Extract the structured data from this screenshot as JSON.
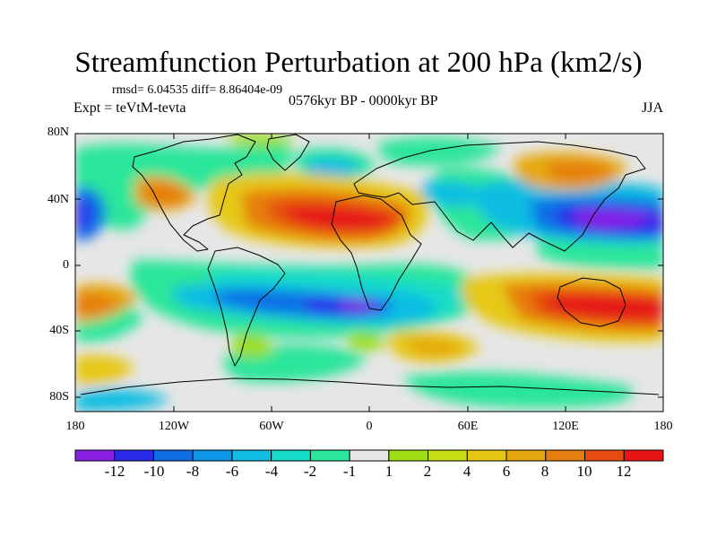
{
  "title": "Streamfunction Perturbation at 200 hPa (km2/s)",
  "stats": "rmsd= 6.04535  diff= 8.86404e-09",
  "experiment": "Expt = teVtM-tevta",
  "period": "0576kyr BP - 0000kyr BP",
  "season": "JJA",
  "lat_labels": [
    "80N",
    "40N",
    "0",
    "40S",
    "80S"
  ],
  "lon_labels": [
    "180",
    "120W",
    "60W",
    "0",
    "60E",
    "120E",
    "180"
  ],
  "colorbar": {
    "colors": [
      "#8a1fe6",
      "#2a2aea",
      "#0e6ee6",
      "#0f96e8",
      "#11bde2",
      "#14dcc8",
      "#2ae69a",
      "#e6e6e6",
      "#9fdd14",
      "#c8dc12",
      "#e6c812",
      "#e6a810",
      "#e67d0f",
      "#e64c10",
      "#e61414"
    ],
    "labels": [
      "-12",
      "-10",
      "-8",
      "-6",
      "-4",
      "-2",
      "-1",
      "1",
      "2",
      "4",
      "6",
      "8",
      "10",
      "12"
    ]
  }
}
